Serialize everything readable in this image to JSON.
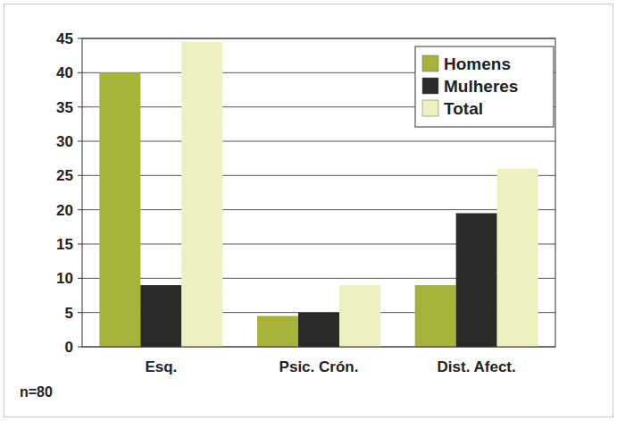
{
  "chart_data": {
    "type": "bar",
    "categories": [
      "Esq.",
      "Psic. Crón.",
      "Dist. Afect."
    ],
    "series": [
      {
        "name": "Homens",
        "color": "#a9b238",
        "values": [
          40,
          4.5,
          9
        ]
      },
      {
        "name": "Mulheres",
        "color": "#2a2a28",
        "values": [
          9,
          5,
          19.5
        ]
      },
      {
        "name": "Total",
        "color": "#eef0c2",
        "values": [
          44.5,
          9,
          26
        ]
      }
    ],
    "ylim": [
      0,
      45
    ],
    "yticks": [
      0,
      5,
      10,
      15,
      20,
      25,
      30,
      35,
      40,
      45
    ],
    "grid": true,
    "legend": "top-right",
    "annotations": [
      "n=80"
    ]
  }
}
